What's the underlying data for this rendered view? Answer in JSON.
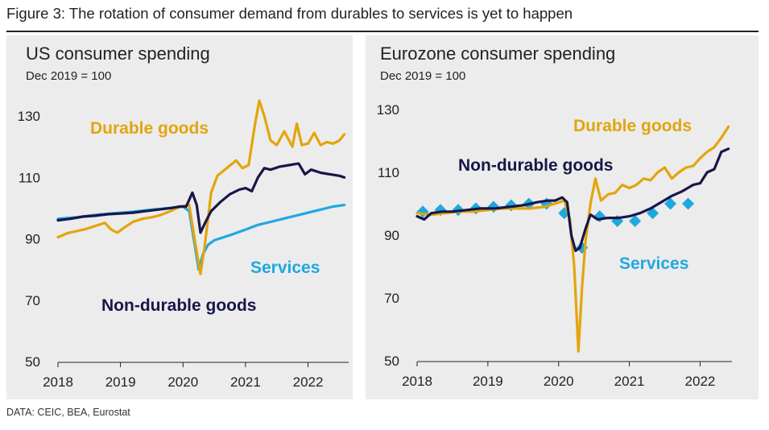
{
  "figure": {
    "title": "Figure 3: The rotation of consumer demand from durables to services is yet to happen",
    "source": "DATA: CEIC, BEA, Eurostat"
  },
  "colors": {
    "durable": "#E2A50C",
    "nondurable": "#17174A",
    "services": "#1EA8E0",
    "axis": "#222222"
  },
  "chart_data": [
    {
      "type": "line",
      "title": "US consumer spending",
      "subtitle": "Dec 2019 = 100",
      "xlabel": "",
      "ylabel": "",
      "xlim": [
        2018.0,
        2022.65
      ],
      "ylim": [
        50,
        130
      ],
      "xticks": [
        "2018",
        "2019",
        "2020",
        "2021",
        "2022"
      ],
      "yticks": [
        "130",
        "110",
        "90",
        "70",
        "50"
      ],
      "series": [
        {
          "name": "Durable goods",
          "label": "Durable goods",
          "key": "durable",
          "x": [
            2018.0,
            2018.15,
            2018.3,
            2018.45,
            2018.6,
            2018.75,
            2018.85,
            2018.95,
            2019.05,
            2019.2,
            2019.35,
            2019.5,
            2019.65,
            2019.8,
            2019.95,
            2020.1,
            2020.2,
            2020.28,
            2020.35,
            2020.45,
            2020.55,
            2020.7,
            2020.85,
            2020.95,
            2021.05,
            2021.15,
            2021.22,
            2021.3,
            2021.4,
            2021.5,
            2021.62,
            2021.75,
            2021.82,
            2021.9,
            2022.0,
            2022.1,
            2022.2,
            2022.3,
            2022.4,
            2022.5,
            2022.58
          ],
          "y": [
            90.5,
            91.8,
            92.5,
            93.2,
            94.2,
            95.2,
            93.0,
            92.0,
            93.5,
            95.5,
            96.5,
            97.0,
            97.8,
            99.0,
            100.5,
            101.0,
            88.0,
            78.5,
            88.0,
            105.0,
            110.5,
            113.0,
            115.5,
            113.0,
            114.0,
            127.0,
            135.0,
            130.0,
            122.0,
            120.5,
            125.0,
            120.0,
            127.5,
            120.5,
            121.0,
            124.5,
            120.5,
            121.5,
            121.0,
            122.0,
            124.0
          ]
        },
        {
          "name": "Non-durable goods",
          "label": "Non-durable goods",
          "key": "nondurable",
          "x": [
            2018.0,
            2018.2,
            2018.4,
            2018.6,
            2018.8,
            2019.0,
            2019.2,
            2019.4,
            2019.6,
            2019.8,
            2019.95,
            2020.05,
            2020.15,
            2020.22,
            2020.28,
            2020.35,
            2020.45,
            2020.6,
            2020.75,
            2020.9,
            2021.0,
            2021.1,
            2021.2,
            2021.3,
            2021.4,
            2021.55,
            2021.7,
            2021.85,
            2021.95,
            2022.05,
            2022.2,
            2022.35,
            2022.5,
            2022.58
          ],
          "y": [
            96.0,
            96.5,
            97.2,
            97.5,
            98.0,
            98.2,
            98.5,
            99.0,
            99.5,
            100.0,
            100.5,
            100.5,
            105.0,
            101.0,
            92.0,
            95.0,
            99.0,
            102.0,
            104.5,
            106.0,
            106.5,
            105.5,
            110.0,
            113.0,
            112.5,
            113.5,
            114.0,
            114.5,
            111.0,
            112.5,
            111.5,
            111.0,
            110.5,
            110.0
          ]
        },
        {
          "name": "Services",
          "label": "Services",
          "key": "services",
          "x": [
            2018.0,
            2018.3,
            2018.6,
            2018.9,
            2019.2,
            2019.5,
            2019.8,
            2020.0,
            2020.1,
            2020.18,
            2020.25,
            2020.32,
            2020.4,
            2020.5,
            2020.65,
            2020.8,
            2021.0,
            2021.2,
            2021.4,
            2021.6,
            2021.8,
            2022.0,
            2022.2,
            2022.4,
            2022.58
          ],
          "y": [
            96.5,
            97.0,
            97.8,
            98.3,
            98.8,
            99.5,
            100.0,
            100.5,
            99.0,
            89.0,
            80.0,
            85.0,
            88.0,
            89.5,
            90.5,
            91.5,
            93.0,
            94.5,
            95.5,
            96.5,
            97.5,
            98.5,
            99.5,
            100.5,
            101.0
          ]
        }
      ]
    },
    {
      "type": "line",
      "title": "Eurozone consumer spending",
      "subtitle": "Dec 2019 = 100",
      "xlabel": "",
      "ylabel": "",
      "xlim": [
        2018.0,
        2022.45
      ],
      "ylim": [
        50,
        130
      ],
      "xticks": [
        "2018",
        "2019",
        "2020",
        "2021",
        "2022"
      ],
      "yticks": [
        "130",
        "110",
        "90",
        "70",
        "50"
      ],
      "series": [
        {
          "name": "Durable goods",
          "label": "Durable goods",
          "key": "durable",
          "x": [
            2018.0,
            2018.2,
            2018.4,
            2018.6,
            2018.8,
            2019.0,
            2019.2,
            2019.4,
            2019.6,
            2019.8,
            2019.95,
            2020.08,
            2020.16,
            2020.22,
            2020.28,
            2020.33,
            2020.38,
            2020.45,
            2020.52,
            2020.6,
            2020.7,
            2020.8,
            2020.9,
            2021.0,
            2021.1,
            2021.2,
            2021.3,
            2021.4,
            2021.5,
            2021.6,
            2021.7,
            2021.8,
            2021.9,
            2022.0,
            2022.1,
            2022.2,
            2022.3,
            2022.4
          ],
          "y": [
            97.0,
            96.5,
            97.0,
            97.5,
            97.5,
            98.0,
            98.5,
            98.5,
            98.5,
            99.0,
            100.0,
            101.0,
            95.0,
            80.0,
            53.0,
            73.0,
            88.0,
            100.0,
            108.0,
            101.0,
            103.0,
            103.5,
            106.0,
            105.0,
            106.0,
            108.0,
            107.5,
            110.0,
            111.5,
            108.0,
            110.0,
            111.5,
            112.0,
            114.5,
            116.5,
            118.0,
            121.0,
            124.5
          ]
        },
        {
          "name": "Non-durable goods",
          "label": "Non-durable goods",
          "key": "nondurable",
          "x": [
            2018.0,
            2018.1,
            2018.2,
            2018.35,
            2018.5,
            2018.7,
            2018.9,
            2019.1,
            2019.3,
            2019.5,
            2019.7,
            2019.85,
            2019.95,
            2020.05,
            2020.12,
            2020.18,
            2020.24,
            2020.3,
            2020.38,
            2020.45,
            2020.55,
            2020.7,
            2020.85,
            2021.0,
            2021.15,
            2021.3,
            2021.45,
            2021.6,
            2021.75,
            2021.9,
            2022.0,
            2022.1,
            2022.2,
            2022.3,
            2022.4
          ],
          "y": [
            96.0,
            95.0,
            97.0,
            97.5,
            97.5,
            98.0,
            98.5,
            98.5,
            99.0,
            99.5,
            100.5,
            101.0,
            101.0,
            102.0,
            100.5,
            90.0,
            85.0,
            86.0,
            92.0,
            96.5,
            95.0,
            95.5,
            95.5,
            96.0,
            97.0,
            98.5,
            100.5,
            102.5,
            104.0,
            106.0,
            106.5,
            110.0,
            111.0,
            116.5,
            117.5
          ]
        },
        {
          "name": "Services",
          "label": "Services",
          "key": "services",
          "marker": "diamond",
          "x": [
            2018.08,
            2018.33,
            2018.58,
            2018.83,
            2019.08,
            2019.33,
            2019.58,
            2019.83,
            2020.08,
            2020.33,
            2020.58,
            2020.83,
            2021.08,
            2021.33,
            2021.58,
            2021.83
          ],
          "y": [
            97.5,
            98.0,
            98.0,
            98.5,
            99.0,
            99.5,
            100.0,
            100.0,
            97.0,
            86.0,
            96.0,
            94.5,
            94.5,
            97.0,
            100.0,
            100.0
          ]
        }
      ]
    }
  ]
}
